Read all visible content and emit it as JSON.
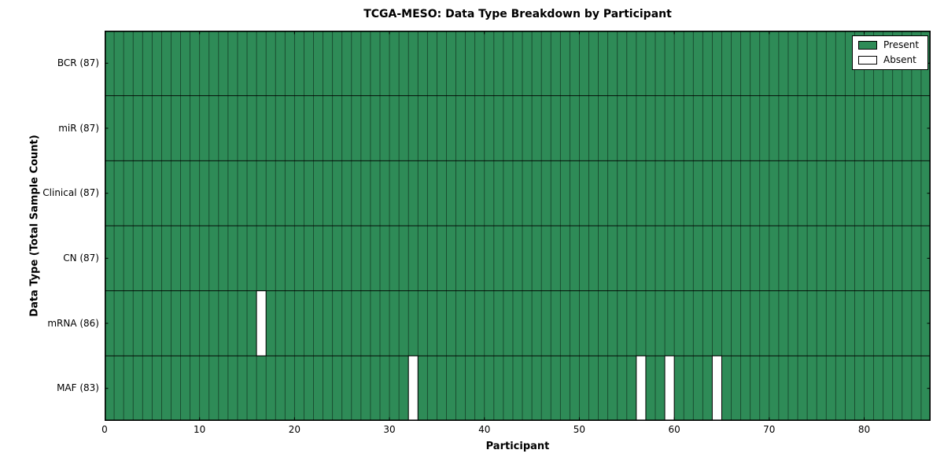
{
  "chart_data": {
    "type": "heatmap",
    "title": "TCGA-MESO: Data Type Breakdown by Participant",
    "xlabel": "Participant",
    "ylabel": "Data Type (Total Sample Count)",
    "n_participants": 87,
    "xlim": [
      0,
      87
    ],
    "xticks": [
      0,
      10,
      20,
      30,
      40,
      50,
      60,
      70,
      80
    ],
    "rows": [
      {
        "key": "bcr",
        "label": "BCR (87)",
        "total": 87,
        "absent_participants": []
      },
      {
        "key": "mir",
        "label": "miR (87)",
        "total": 87,
        "absent_participants": []
      },
      {
        "key": "clinical",
        "label": "Clinical (87)",
        "total": 87,
        "absent_participants": []
      },
      {
        "key": "cn",
        "label": "CN (87)",
        "total": 87,
        "absent_participants": []
      },
      {
        "key": "mrna",
        "label": "mRNA (86)",
        "total": 86,
        "absent_participants": [
          16
        ]
      },
      {
        "key": "maf",
        "label": "MAF (83)",
        "total": 83,
        "absent_participants": [
          32,
          56,
          59,
          64
        ]
      }
    ],
    "legend": [
      {
        "label": "Present",
        "color": "#2e8b57"
      },
      {
        "label": "Absent",
        "color": "#ffffff"
      }
    ],
    "legend_position": "upper right",
    "colors": {
      "present": "#2e8b57",
      "absent": "#ffffff",
      "edge": "#000000",
      "background": "#ffffff"
    },
    "grid": "per-cell vertical dividers and row dividers, black axes frame, inward ticks"
  }
}
